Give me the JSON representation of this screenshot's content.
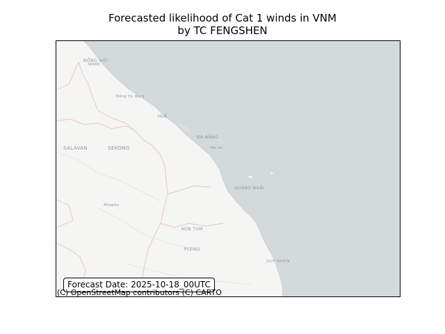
{
  "title": {
    "line1": "Forecasted likelihood of Cat 1 winds in VNM",
    "line2": "by TC FENGSHEN"
  },
  "map": {
    "basemap": "CARTO light",
    "colors": {
      "sea": "#d4dadc",
      "land": "#f5f5f3",
      "border": "#e8cdd3",
      "river": "#e6ebe9"
    },
    "places": [
      {
        "name": "ĐỒNG HỚI"
      },
      {
        "name": "WARD"
      },
      {
        "name": "Đồng Hà Ward"
      },
      {
        "name": "HUẾ"
      },
      {
        "name": "ĐÀ NẴNG"
      },
      {
        "name": "Hội An"
      },
      {
        "name": "SALAVAN"
      },
      {
        "name": "SEKONG"
      },
      {
        "name": "QUẢNG NGÃI"
      },
      {
        "name": "Attapeu"
      },
      {
        "name": "KON TUM"
      },
      {
        "name": "PLEIKU"
      },
      {
        "name": "QUY NHƠN"
      }
    ]
  },
  "forecast_date": "Forecast Date: 2025-10-18_00UTC",
  "attribution": "(C) OpenStreetMap contributors (C) CARTO"
}
